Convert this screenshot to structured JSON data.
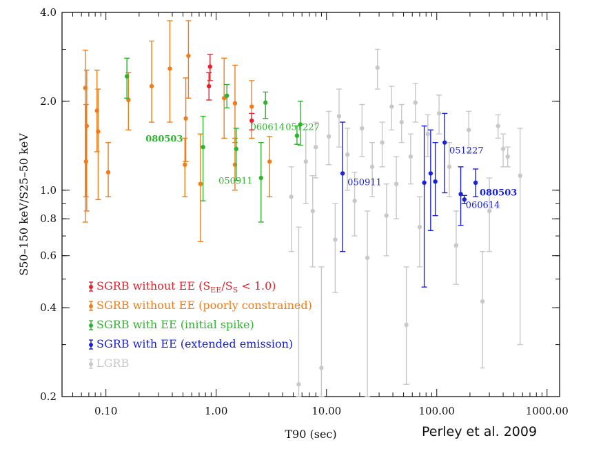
{
  "chart_data": {
    "type": "scatter",
    "x_scale": "log",
    "y_scale": "log",
    "xlim": [
      0.04,
      1300
    ],
    "ylim": [
      0.2,
      4.0
    ],
    "xlabel": "T90 (sec)",
    "ylabel": "S50–150 keV/S25–50 keV",
    "x_ticks": [
      {
        "value": 0.1,
        "label": "0.10"
      },
      {
        "value": 1,
        "label": "1.00"
      },
      {
        "value": 10,
        "label": "10.00"
      },
      {
        "value": 100,
        "label": "100.00"
      },
      {
        "value": 1000,
        "label": "1000.00"
      }
    ],
    "y_ticks": [
      {
        "value": 0.2,
        "label": "0.2"
      },
      {
        "value": 0.4,
        "label": "0.4"
      },
      {
        "value": 0.6,
        "label": "0.6"
      },
      {
        "value": 0.8,
        "label": "0.8"
      },
      {
        "value": 1.0,
        "label": "1.0"
      },
      {
        "value": 2.0,
        "label": "2.0"
      },
      {
        "value": 4.0,
        "label": "4.0"
      }
    ],
    "legend_position": "bottom-left",
    "series": [
      {
        "name": "SGRB without EE (SEE/SS < 1.0)",
        "color": "#e8202a",
        "points": [
          {
            "x": 0.88,
            "y": 2.62,
            "lo": 2.35,
            "hi": 2.88
          },
          {
            "x": 0.86,
            "y": 2.25,
            "lo": 2.02,
            "hi": 2.5
          },
          {
            "x": 2.1,
            "y": 1.72,
            "lo": 1.6,
            "hi": 1.82
          }
        ]
      },
      {
        "name": "SGRB without EE (poorly constrained)",
        "color": "#f07d1a",
        "points": [
          {
            "x": 0.065,
            "y": 2.22,
            "lo": 0.78,
            "hi": 2.98
          },
          {
            "x": 0.067,
            "y": 1.65,
            "lo": 0.85,
            "hi": 2.55
          },
          {
            "x": 0.066,
            "y": 1.25,
            "lo": 0.95,
            "hi": 1.95
          },
          {
            "x": 0.083,
            "y": 1.86,
            "lo": 1.35,
            "hi": 2.55
          },
          {
            "x": 0.085,
            "y": 1.58,
            "lo": 0.93,
            "hi": 2.2
          },
          {
            "x": 0.105,
            "y": 1.15,
            "lo": 0.95,
            "hi": 1.45
          },
          {
            "x": 0.16,
            "y": 2.02,
            "lo": 1.6,
            "hi": 2.5
          },
          {
            "x": 0.26,
            "y": 2.25,
            "lo": 1.7,
            "hi": 3.2
          },
          {
            "x": 0.38,
            "y": 2.58,
            "lo": 1.7,
            "hi": 3.75
          },
          {
            "x": 0.53,
            "y": 1.75,
            "lo": 1.25,
            "hi": 2.4
          },
          {
            "x": 0.52,
            "y": 1.22,
            "lo": 0.95,
            "hi": 1.5
          },
          {
            "x": 0.56,
            "y": 2.85,
            "lo": 2.05,
            "hi": 3.75
          },
          {
            "x": 0.72,
            "y": 1.05,
            "lo": 0.67,
            "hi": 1.55
          },
          {
            "x": 1.18,
            "y": 2.05,
            "lo": 1.5,
            "hi": 2.8
          },
          {
            "x": 1.48,
            "y": 1.97,
            "lo": 1.45,
            "hi": 2.65
          },
          {
            "x": 1.48,
            "y": 1.22,
            "lo": 1.0,
            "hi": 1.5
          },
          {
            "x": 2.1,
            "y": 1.92,
            "lo": 1.5,
            "hi": 2.35
          },
          {
            "x": 3.05,
            "y": 1.25,
            "lo": 0.95,
            "hi": 1.52
          }
        ]
      },
      {
        "name": "SGRB with EE (initial spike)",
        "color": "#2fb32f",
        "points": [
          {
            "x": 0.155,
            "y": 2.43,
            "lo": 2.05,
            "hi": 2.8
          },
          {
            "x": 0.76,
            "y": 1.4,
            "lo": 0.92,
            "hi": 1.78
          },
          {
            "x": 1.25,
            "y": 2.09,
            "lo": 1.9,
            "hi": 2.28
          },
          {
            "x": 1.52,
            "y": 1.38,
            "lo": 1.08,
            "hi": 1.62
          },
          {
            "x": 2.55,
            "y": 1.1,
            "lo": 0.78,
            "hi": 1.45
          },
          {
            "x": 2.8,
            "y": 1.98,
            "lo": 1.75,
            "hi": 2.15
          },
          {
            "x": 5.4,
            "y": 1.53,
            "lo": 1.43,
            "hi": 1.65
          },
          {
            "x": 5.8,
            "y": 1.67,
            "lo": 1.42,
            "hi": 2.0
          }
        ]
      },
      {
        "name": "SGRB with EE (extended emission)",
        "color": "#1820d8",
        "points": [
          {
            "x": 14.0,
            "y": 1.14,
            "lo": 0.62,
            "hi": 1.7
          },
          {
            "x": 77.0,
            "y": 1.06,
            "lo": 0.47,
            "hi": 1.65
          },
          {
            "x": 88.0,
            "y": 1.14,
            "lo": 0.73,
            "hi": 1.6
          },
          {
            "x": 97.0,
            "y": 1.07,
            "lo": 0.82,
            "hi": 1.45
          },
          {
            "x": 118.0,
            "y": 1.45,
            "lo": 0.98,
            "hi": 1.82
          },
          {
            "x": 165.0,
            "y": 0.97,
            "lo": 0.76,
            "hi": 1.2
          },
          {
            "x": 178.0,
            "y": 0.93,
            "lo": 0.9,
            "hi": 0.96
          },
          {
            "x": 225.0,
            "y": 1.06,
            "lo": 0.95,
            "hi": 1.18
          }
        ]
      },
      {
        "name": "LGRB",
        "color": "#c8c8c8",
        "points": [
          {
            "x": 4.8,
            "y": 0.95,
            "lo": 0.62,
            "hi": 1.2
          },
          {
            "x": 5.6,
            "y": 0.22,
            "lo": 0.2,
            "hi": 0.75
          },
          {
            "x": 6.5,
            "y": 1.25,
            "lo": 0.9,
            "hi": 1.6
          },
          {
            "x": 7.5,
            "y": 0.85,
            "lo": 0.55,
            "hi": 1.12
          },
          {
            "x": 8.0,
            "y": 1.4,
            "lo": 1.1,
            "hi": 1.7
          },
          {
            "x": 9.0,
            "y": 0.25,
            "lo": 0.2,
            "hi": 0.55
          },
          {
            "x": 10.5,
            "y": 1.52,
            "lo": 1.22,
            "hi": 1.85
          },
          {
            "x": 12.0,
            "y": 0.68,
            "lo": 0.45,
            "hi": 0.9
          },
          {
            "x": 13.0,
            "y": 1.78,
            "lo": 1.4,
            "hi": 2.2
          },
          {
            "x": 15.5,
            "y": 1.32,
            "lo": 1.0,
            "hi": 1.62
          },
          {
            "x": 18.0,
            "y": 0.92,
            "lo": 0.7,
            "hi": 1.15
          },
          {
            "x": 21.0,
            "y": 1.62,
            "lo": 1.3,
            "hi": 1.95
          },
          {
            "x": 23.5,
            "y": 0.59,
            "lo": 0.2,
            "hi": 0.85
          },
          {
            "x": 26.0,
            "y": 1.2,
            "lo": 0.95,
            "hi": 1.45
          },
          {
            "x": 29.0,
            "y": 2.6,
            "lo": 2.2,
            "hi": 3.0
          },
          {
            "x": 32.0,
            "y": 1.45,
            "lo": 1.2,
            "hi": 1.7
          },
          {
            "x": 35.0,
            "y": 0.82,
            "lo": 0.6,
            "hi": 1.05
          },
          {
            "x": 39.0,
            "y": 1.92,
            "lo": 1.6,
            "hi": 2.25
          },
          {
            "x": 43.0,
            "y": 1.05,
            "lo": 0.8,
            "hi": 1.3
          },
          {
            "x": 48.0,
            "y": 1.7,
            "lo": 1.45,
            "hi": 1.95
          },
          {
            "x": 53.0,
            "y": 0.35,
            "lo": 0.22,
            "hi": 0.55
          },
          {
            "x": 58.0,
            "y": 1.3,
            "lo": 1.05,
            "hi": 1.55
          },
          {
            "x": 64.0,
            "y": 1.98,
            "lo": 1.7,
            "hi": 2.3
          },
          {
            "x": 70.0,
            "y": 0.75,
            "lo": 0.55,
            "hi": 0.95
          },
          {
            "x": 83.0,
            "y": 1.55,
            "lo": 1.3,
            "hi": 1.8
          },
          {
            "x": 105.0,
            "y": 1.82,
            "lo": 1.55,
            "hi": 2.1
          },
          {
            "x": 130.0,
            "y": 1.2,
            "lo": 0.95,
            "hi": 1.45
          },
          {
            "x": 150.0,
            "y": 0.65,
            "lo": 0.48,
            "hi": 0.85
          },
          {
            "x": 195.0,
            "y": 1.6,
            "lo": 1.35,
            "hi": 1.85
          },
          {
            "x": 260.0,
            "y": 0.42,
            "lo": 0.25,
            "hi": 0.62
          },
          {
            "x": 300.0,
            "y": 0.85,
            "lo": 0.62,
            "hi": 1.1
          },
          {
            "x": 360.0,
            "y": 1.65,
            "lo": 1.5,
            "hi": 1.8
          },
          {
            "x": 400.0,
            "y": 1.38,
            "lo": 1.2,
            "hi": 1.55
          },
          {
            "x": 440.0,
            "y": 1.3,
            "lo": 1.2,
            "hi": 1.4
          },
          {
            "x": 570.0,
            "y": 1.12,
            "lo": 0.3,
            "hi": 1.62
          }
        ]
      }
    ],
    "annotations": [
      {
        "text": "080503",
        "x": 0.5,
        "y": 1.46,
        "color": "#2fb32f",
        "weight": "bold",
        "anchor": "end"
      },
      {
        "text": "050911",
        "x": 1.05,
        "y": 1.05,
        "color": "#2fb32f",
        "weight": "normal",
        "anchor": "start"
      },
      {
        "text": "060614",
        "x": 2.05,
        "y": 1.6,
        "color": "#2fb32f",
        "weight": "normal",
        "anchor": "start"
      },
      {
        "text": "051227",
        "x": 4.25,
        "y": 1.6,
        "color": "#2fb32f",
        "weight": "normal",
        "anchor": "start"
      },
      {
        "text": "050911",
        "x": 15.5,
        "y": 1.04,
        "color": "#1820d8",
        "weight": "normal",
        "anchor": "start"
      },
      {
        "text": "051227",
        "x": 130.0,
        "y": 1.33,
        "color": "#1820d8",
        "weight": "normal",
        "anchor": "start"
      },
      {
        "text": "080503",
        "x": 245.0,
        "y": 0.96,
        "color": "#1820d8",
        "weight": "bold",
        "anchor": "start"
      },
      {
        "text": "060614",
        "x": 183.0,
        "y": 0.87,
        "color": "#1820d8",
        "weight": "normal",
        "anchor": "start"
      }
    ],
    "legend": [
      {
        "prefix": "SGRB without EE (S",
        "sub1": "EE",
        "mid": "/S",
        "sub2": "S",
        "suffix": " < 1.0)",
        "color": "#e8202a"
      },
      {
        "prefix": "SGRB without EE (poorly constrained)",
        "color": "#f07d1a"
      },
      {
        "prefix": "SGRB with EE (initial spike)",
        "color": "#2fb32f"
      },
      {
        "prefix": "SGRB with EE (extended emission)",
        "color": "#1820d8"
      },
      {
        "prefix": "LGRB",
        "color": "#c8c8c8"
      }
    ]
  },
  "credit": "Perley et al. 2009"
}
